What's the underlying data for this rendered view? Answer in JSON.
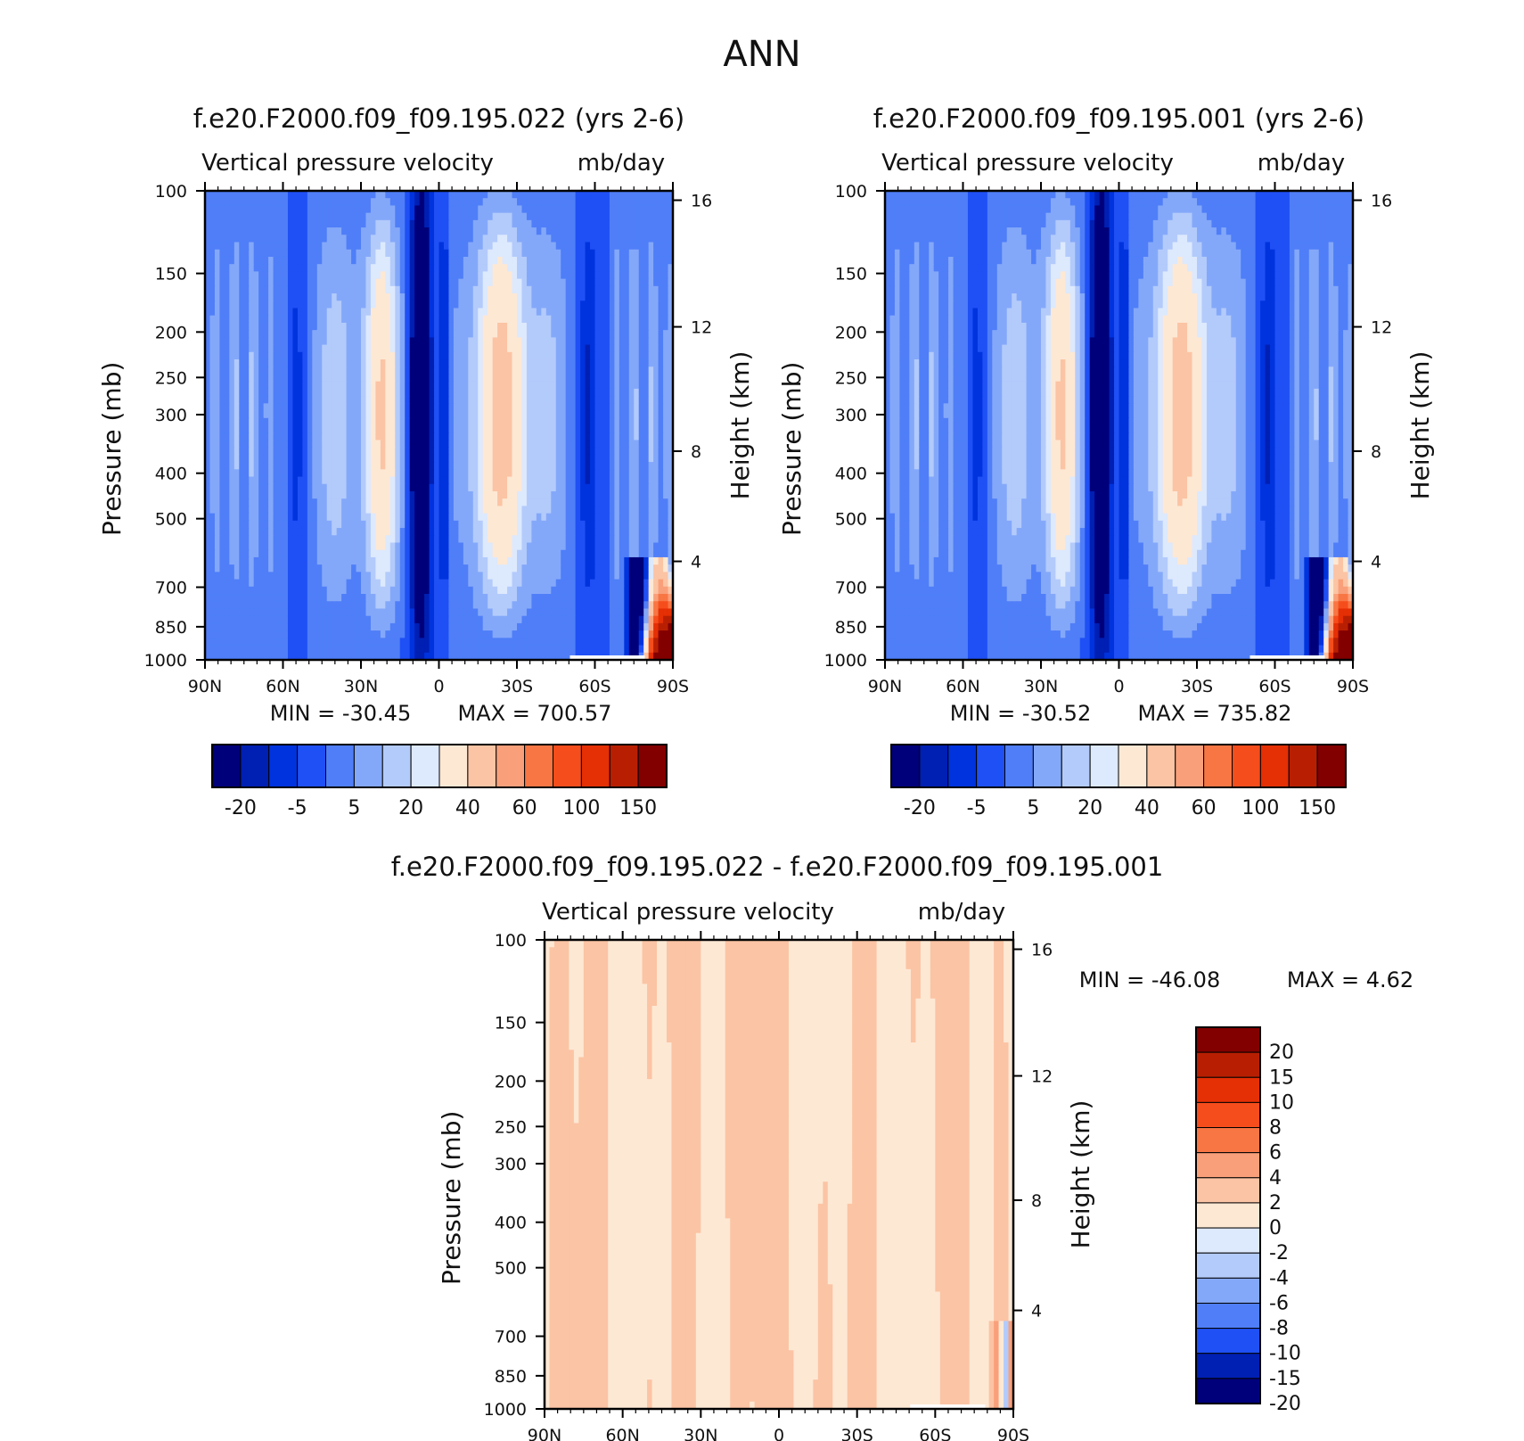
{
  "figure": {
    "season": "ANN",
    "colors": {
      "main": [
        "#00007a",
        "#001fb3",
        "#0033dd",
        "#1f50f5",
        "#4f7ef8",
        "#84a8f9",
        "#b3cbfb",
        "#dde9fd",
        "#fde8d4",
        "#fbc4a4",
        "#f9a07a",
        "#f87644",
        "#f64d1c",
        "#e52f05",
        "#b81f02",
        "#820000"
      ],
      "diff": [
        "#820000",
        "#b81f02",
        "#e52f05",
        "#f64d1c",
        "#f87644",
        "#f9a07a",
        "#fbc4a4",
        "#fde8d4",
        "#dde9fd",
        "#b3cbfb",
        "#84a8f9",
        "#4f7ef8",
        "#1f50f5",
        "#001fb3",
        "#00007a"
      ]
    }
  },
  "panels": [
    {
      "case": "f.e20.F2000.f09_f09.195.022 (yrs 2-6)",
      "variable": "Vertical pressure velocity",
      "units": "mb/day",
      "min_label": "MIN = -30.45",
      "max_label": "MAX = 700.57"
    },
    {
      "case": "f.e20.F2000.f09_f09.195.001 (yrs 2-6)",
      "variable": "Vertical pressure velocity",
      "units": "mb/day",
      "min_label": "MIN = -30.52",
      "max_label": "MAX = 735.82"
    },
    {
      "case": "f.e20.F2000.f09_f09.195.022 - f.e20.F2000.f09_f09.195.001",
      "variable": "Vertical pressure velocity",
      "units": "mb/day",
      "min_label": "MIN = -46.08",
      "max_label": "MAX = 4.62"
    }
  ],
  "chart_data": [
    {
      "type": "heatmap",
      "title": "f.e20.F2000.f09_f09.195.022 (yrs 2-6)",
      "subtitle": "Vertical pressure velocity   mb/day",
      "xlabel": "",
      "ylabel": "Pressure (mb)",
      "ylabel_right": "Height (km)",
      "x_ticks": [
        "90N",
        "60N",
        "30N",
        "0",
        "30S",
        "60S",
        "90S"
      ],
      "y_ticks": [
        "100",
        "150",
        "200",
        "250",
        "300",
        "400",
        "500",
        "700",
        "850",
        "1000"
      ],
      "y_ticks_right": [
        "16",
        "12",
        "8",
        "4"
      ],
      "y_scale": "log",
      "ylim": [
        1000,
        100
      ],
      "colorbar_labels": [
        "-20",
        "-5",
        "5",
        "20",
        "40",
        "60",
        "100",
        "150"
      ],
      "min": -30.45,
      "max": 700.57
    },
    {
      "type": "heatmap",
      "title": "f.e20.F2000.f09_f09.195.001 (yrs 2-6)",
      "subtitle": "Vertical pressure velocity   mb/day",
      "xlabel": "",
      "ylabel": "Pressure (mb)",
      "ylabel_right": "Height (km)",
      "x_ticks": [
        "90N",
        "60N",
        "30N",
        "0",
        "30S",
        "60S",
        "90S"
      ],
      "y_ticks": [
        "100",
        "150",
        "200",
        "250",
        "300",
        "400",
        "500",
        "700",
        "850",
        "1000"
      ],
      "y_ticks_right": [
        "16",
        "12",
        "8",
        "4"
      ],
      "y_scale": "log",
      "ylim": [
        1000,
        100
      ],
      "colorbar_labels": [
        "-20",
        "-5",
        "5",
        "20",
        "40",
        "60",
        "100",
        "150"
      ],
      "min": -30.52,
      "max": 735.82
    },
    {
      "type": "heatmap",
      "title": "f.e20.F2000.f09_f09.195.022 - f.e20.F2000.f09_f09.195.001",
      "subtitle": "Vertical pressure velocity   mb/day",
      "xlabel": "",
      "ylabel": "Pressure (mb)",
      "ylabel_right": "Height (km)",
      "x_ticks": [
        "90N",
        "60N",
        "30N",
        "0",
        "30S",
        "60S",
        "90S"
      ],
      "y_ticks": [
        "100",
        "150",
        "200",
        "250",
        "300",
        "400",
        "500",
        "700",
        "850",
        "1000"
      ],
      "y_ticks_right": [
        "16",
        "12",
        "8",
        "4"
      ],
      "y_scale": "log",
      "ylim": [
        1000,
        100
      ],
      "colorbar_labels": [
        "20",
        "15",
        "10",
        "8",
        "6",
        "4",
        "2",
        "0",
        "-2",
        "-4",
        "-6",
        "-8",
        "-10",
        "-15",
        "-20"
      ],
      "min": -46.08,
      "max": 4.62
    }
  ]
}
